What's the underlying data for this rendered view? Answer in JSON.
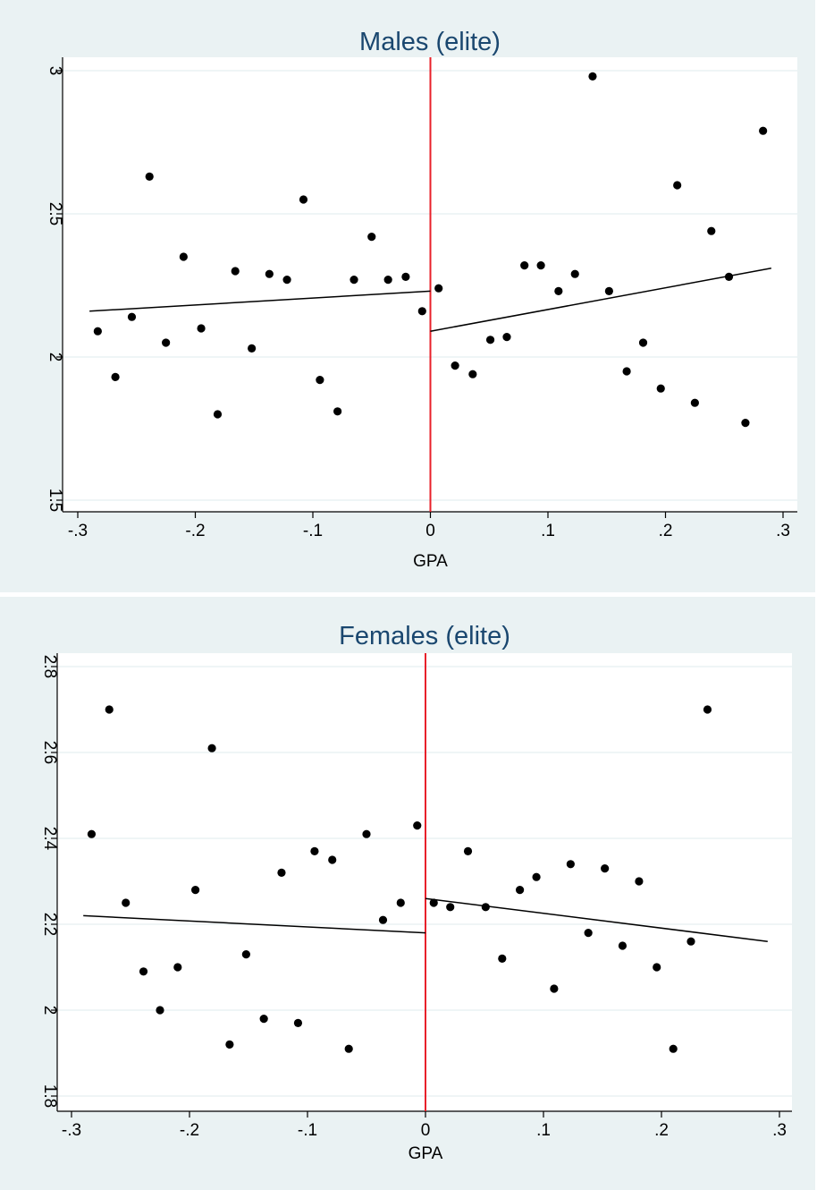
{
  "chart_data": [
    {
      "type": "scatter",
      "title": "Males (elite)",
      "xlabel": "GPA",
      "ylabel": "",
      "xlim": [
        -0.3,
        0.3
      ],
      "ylim": [
        1.5,
        3.0
      ],
      "xticks": [
        {
          "value": -0.3,
          "label": "-.3"
        },
        {
          "value": -0.2,
          "label": "-.2"
        },
        {
          "value": -0.1,
          "label": "-.1"
        },
        {
          "value": 0,
          "label": "0"
        },
        {
          "value": 0.1,
          "label": ".1"
        },
        {
          "value": 0.2,
          "label": ".2"
        },
        {
          "value": 0.3,
          "label": ".3"
        }
      ],
      "yticks": [
        {
          "value": 1.5,
          "label": "1.5"
        },
        {
          "value": 2.0,
          "label": "2"
        },
        {
          "value": 2.5,
          "label": "2.5"
        },
        {
          "value": 3.0,
          "label": "3"
        }
      ],
      "grid": true,
      "cutoff": {
        "x": 0,
        "color": "#e8202a"
      },
      "points": [
        [
          -0.283,
          2.09
        ],
        [
          -0.268,
          1.93
        ],
        [
          -0.254,
          2.14
        ],
        [
          -0.239,
          2.63
        ],
        [
          -0.225,
          2.05
        ],
        [
          -0.21,
          2.35
        ],
        [
          -0.195,
          2.1
        ],
        [
          -0.181,
          1.8
        ],
        [
          -0.166,
          2.3
        ],
        [
          -0.152,
          2.03
        ],
        [
          -0.137,
          2.29
        ],
        [
          -0.122,
          2.27
        ],
        [
          -0.108,
          2.55
        ],
        [
          -0.094,
          1.92
        ],
        [
          -0.079,
          1.81
        ],
        [
          -0.065,
          2.27
        ],
        [
          -0.05,
          2.42
        ],
        [
          -0.036,
          2.27
        ],
        [
          -0.021,
          2.28
        ],
        [
          -0.007,
          2.16
        ],
        [
          0.007,
          2.24
        ],
        [
          0.021,
          1.97
        ],
        [
          0.036,
          1.94
        ],
        [
          0.051,
          2.06
        ],
        [
          0.065,
          2.07
        ],
        [
          0.08,
          2.32
        ],
        [
          0.094,
          2.32
        ],
        [
          0.109,
          2.23
        ],
        [
          0.123,
          2.29
        ],
        [
          0.138,
          2.98
        ],
        [
          0.152,
          2.23
        ],
        [
          0.167,
          1.95
        ],
        [
          0.181,
          2.05
        ],
        [
          0.196,
          1.89
        ],
        [
          0.21,
          2.6
        ],
        [
          0.225,
          1.84
        ],
        [
          0.239,
          2.44
        ],
        [
          0.254,
          2.28
        ],
        [
          0.268,
          1.77
        ],
        [
          0.283,
          2.79
        ]
      ],
      "fits": [
        {
          "from": [
            -0.29,
            2.16
          ],
          "to": [
            0,
            2.23
          ]
        },
        {
          "from": [
            0,
            2.09
          ],
          "to": [
            0.29,
            2.31
          ]
        }
      ]
    },
    {
      "type": "scatter",
      "title": "Females (elite)",
      "xlabel": "GPA",
      "ylabel": "",
      "xlim": [
        -0.3,
        0.3
      ],
      "ylim": [
        1.8,
        2.8
      ],
      "xticks": [
        {
          "value": -0.3,
          "label": "-.3"
        },
        {
          "value": -0.2,
          "label": "-.2"
        },
        {
          "value": -0.1,
          "label": "-.1"
        },
        {
          "value": 0,
          "label": "0"
        },
        {
          "value": 0.1,
          "label": ".1"
        },
        {
          "value": 0.2,
          "label": ".2"
        },
        {
          "value": 0.3,
          "label": ".3"
        }
      ],
      "yticks": [
        {
          "value": 1.8,
          "label": "1.8"
        },
        {
          "value": 2.0,
          "label": "2"
        },
        {
          "value": 2.2,
          "label": "2.2"
        },
        {
          "value": 2.4,
          "label": "2.4"
        },
        {
          "value": 2.6,
          "label": "2.6"
        },
        {
          "value": 2.8,
          "label": "2.8"
        }
      ],
      "grid": true,
      "cutoff": {
        "x": 0,
        "color": "#e8202a"
      },
      "points": [
        [
          -0.283,
          2.41
        ],
        [
          -0.268,
          2.7
        ],
        [
          -0.254,
          2.25
        ],
        [
          -0.239,
          2.09
        ],
        [
          -0.225,
          2.0
        ],
        [
          -0.21,
          2.1
        ],
        [
          -0.195,
          2.28
        ],
        [
          -0.181,
          2.61
        ],
        [
          -0.166,
          1.92
        ],
        [
          -0.152,
          2.13
        ],
        [
          -0.137,
          1.98
        ],
        [
          -0.122,
          2.32
        ],
        [
          -0.108,
          1.97
        ],
        [
          -0.094,
          2.37
        ],
        [
          -0.079,
          2.35
        ],
        [
          -0.065,
          1.91
        ],
        [
          -0.05,
          2.41
        ],
        [
          -0.036,
          2.21
        ],
        [
          -0.021,
          2.25
        ],
        [
          -0.007,
          2.43
        ],
        [
          0.007,
          2.25
        ],
        [
          0.021,
          2.24
        ],
        [
          0.036,
          2.37
        ],
        [
          0.051,
          2.24
        ],
        [
          0.065,
          2.12
        ],
        [
          0.08,
          2.28
        ],
        [
          0.094,
          2.31
        ],
        [
          0.109,
          2.05
        ],
        [
          0.123,
          2.34
        ],
        [
          0.138,
          2.18
        ],
        [
          0.152,
          2.33
        ],
        [
          0.167,
          2.15
        ],
        [
          0.181,
          2.3
        ],
        [
          0.196,
          2.1
        ],
        [
          0.21,
          1.91
        ],
        [
          0.225,
          2.16
        ],
        [
          0.239,
          2.7
        ]
      ],
      "fits": [
        {
          "from": [
            -0.29,
            2.22
          ],
          "to": [
            0,
            2.18
          ]
        },
        {
          "from": [
            0,
            2.26
          ],
          "to": [
            0.29,
            2.16
          ]
        }
      ]
    }
  ]
}
